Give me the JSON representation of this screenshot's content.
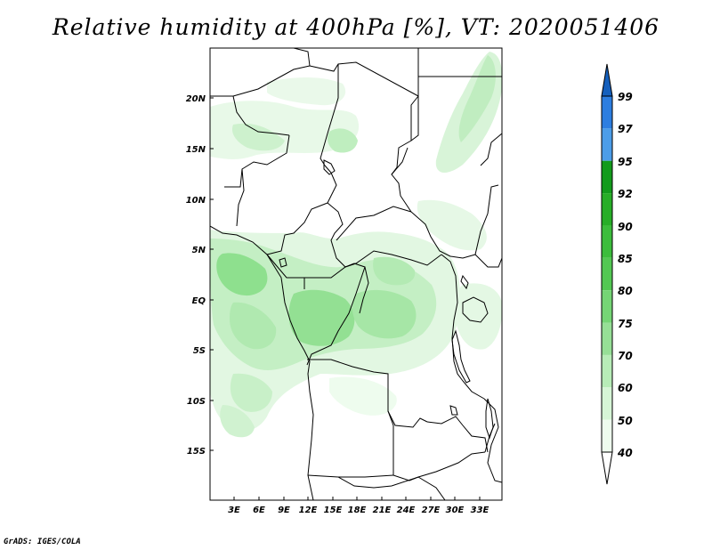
{
  "title": "Relative humidity at 400hPa [%], VT: 2020051406",
  "credit": "GrADS: IGES/COLA",
  "map": {
    "lon_range": [
      0,
      36
    ],
    "lat_range": [
      -20,
      25
    ],
    "x_ticks": [
      "3E",
      "6E",
      "9E",
      "12E",
      "15E",
      "18E",
      "21E",
      "24E",
      "27E",
      "30E",
      "33E"
    ],
    "y_ticks": [
      "20N",
      "15N",
      "10N",
      "5N",
      "EQ",
      "5S",
      "10S",
      "15S"
    ],
    "boundary_color": "#000000",
    "background_color": "#ffffff"
  },
  "colorbar": {
    "levels": [
      "99",
      "97",
      "95",
      "92",
      "90",
      "85",
      "80",
      "75",
      "70",
      "60",
      "50",
      "40"
    ],
    "colors": [
      "#1560bd",
      "#2d7ee0",
      "#4c9de8",
      "#139b1c",
      "#28ae28",
      "#3cbd3c",
      "#53c853",
      "#75d575",
      "#96df96",
      "#b7ecb7",
      "#d6f5d6",
      "#eefcee",
      "#ffffff"
    ],
    "top_arrow_color": "#1560bd",
    "bottom_arrow_color": "#ffffff"
  }
}
